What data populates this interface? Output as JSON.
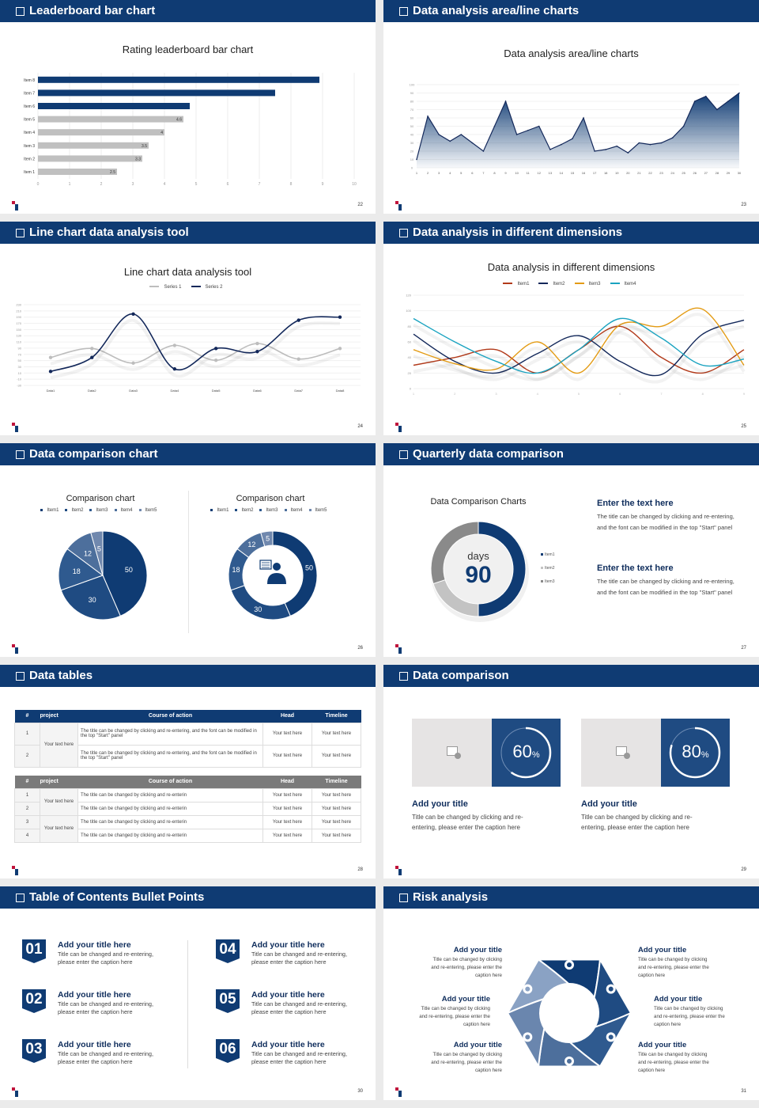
{
  "colors": {
    "navy": "#0f3b73",
    "accent_red": "#c0143c",
    "gray": "#c0c0c0"
  },
  "slides": [
    {
      "header": "Leaderboard bar chart",
      "page": "22"
    },
    {
      "header": "Data analysis area/line charts",
      "page": "23"
    },
    {
      "header": "Line chart data analysis tool",
      "page": "24"
    },
    {
      "header": "Data analysis in different dimensions",
      "page": "25"
    },
    {
      "header": "Data comparison chart",
      "page": "26"
    },
    {
      "header": "Quarterly data comparison",
      "page": "27"
    },
    {
      "header": "Data tables",
      "page": "28"
    },
    {
      "header": "Data comparison",
      "page": "29"
    },
    {
      "header": "Table of Contents Bullet Points",
      "page": "30"
    },
    {
      "header": "Risk analysis",
      "page": "31"
    }
  ],
  "chart_data": [
    {
      "type": "bar",
      "orientation": "horizontal",
      "title": "Rating leaderboard bar chart",
      "categories": [
        "Item 1",
        "Item 2",
        "Item 3",
        "Item 4",
        "Item 5",
        "Item 6",
        "Item 7",
        "Item 8"
      ],
      "values": [
        2.5,
        3.3,
        3.5,
        4,
        4.6,
        4.8,
        7.5,
        8.9
      ],
      "data_labels": [
        "2.5",
        "3.3",
        "3.5",
        "4",
        "4.6",
        "",
        "",
        ""
      ],
      "highlight": [
        false,
        false,
        false,
        false,
        false,
        true,
        true,
        true
      ],
      "xlim": [
        0,
        10
      ],
      "xticks": [
        "0",
        "1",
        "2",
        "3",
        "4",
        "5",
        "6",
        "7",
        "8",
        "9",
        "10"
      ],
      "grid": true
    },
    {
      "type": "area",
      "title": "Data analysis area/line charts",
      "x": [
        "1",
        "2",
        "3",
        "4",
        "5",
        "6",
        "7",
        "8",
        "9",
        "10",
        "11",
        "12",
        "13",
        "14",
        "15",
        "16",
        "17",
        "18",
        "19",
        "20",
        "21",
        "22",
        "23",
        "24",
        "25",
        "26",
        "27",
        "28",
        "29",
        "30"
      ],
      "values": [
        10,
        62,
        40,
        32,
        40,
        30,
        20,
        50,
        80,
        40,
        45,
        50,
        22,
        28,
        35,
        60,
        20,
        22,
        26,
        18,
        30,
        28,
        30,
        36,
        50,
        80,
        86,
        70,
        80,
        90
      ],
      "ylim": [
        0,
        100
      ],
      "yticks": [
        "0",
        "10",
        "20",
        "30",
        "40",
        "50",
        "60",
        "70",
        "80",
        "90",
        "100"
      ],
      "grid": true
    },
    {
      "type": "line",
      "smooth": true,
      "title": "Line chart data analysis tool",
      "categories": [
        "Data1",
        "Data2",
        "Data3",
        "Data4",
        "Data5",
        "Data6",
        "Data7",
        "Data8"
      ],
      "series": [
        {
          "name": "Series 1",
          "values": [
            60,
            89,
            42,
            99,
            51,
            105,
            55,
            89
          ],
          "color": "#bdbdbd"
        },
        {
          "name": "Series 2",
          "values": [
            15,
            60,
            200,
            23,
            89,
            79,
            180,
            190
          ],
          "color": "#13285a"
        }
      ],
      "ylim": [
        -30,
        230
      ],
      "yticks": [
        "-30",
        "-10",
        "10",
        "30",
        "50",
        "70",
        "90",
        "110",
        "130",
        "150",
        "170",
        "190",
        "210",
        "230"
      ],
      "legend": "top"
    },
    {
      "type": "line",
      "smooth": true,
      "title": "Data analysis in different dimensions",
      "x": [
        "1",
        "2",
        "3",
        "4",
        "5",
        "6",
        "7",
        "8",
        "9"
      ],
      "series": [
        {
          "name": "Item1",
          "values": [
            30,
            40,
            50,
            20,
            50,
            80,
            40,
            20,
            50
          ],
          "color": "#b23a1a"
        },
        {
          "name": "Item2",
          "values": [
            70,
            35,
            20,
            45,
            68,
            35,
            18,
            70,
            88
          ],
          "color": "#13285a"
        },
        {
          "name": "Item3",
          "values": [
            50,
            32,
            25,
            60,
            20,
            82,
            80,
            102,
            30
          ],
          "color": "#e39b14"
        },
        {
          "name": "Item4",
          "values": [
            90,
            60,
            35,
            20,
            50,
            90,
            65,
            30,
            38
          ],
          "color": "#1aa3c0"
        }
      ],
      "ylim": [
        0,
        120
      ],
      "yticks": [
        "0",
        "20",
        "40",
        "60",
        "80",
        "100",
        "120"
      ],
      "legend": "top"
    },
    {
      "type": "pie",
      "title": "Comparison chart",
      "categories": [
        "Item1",
        "Item2",
        "Item3",
        "Item4",
        "Item5"
      ],
      "values": [
        50,
        30,
        18,
        12,
        5
      ],
      "colors": [
        "#0f3b73",
        "#1f4b82",
        "#2f5a8f",
        "#4d6f9c",
        "#7088ae"
      ],
      "legend": "top"
    },
    {
      "type": "pie",
      "donut": true,
      "title": "Comparison chart",
      "categories": [
        "Item1",
        "Item2",
        "Item3",
        "Item4",
        "Item5"
      ],
      "values": [
        50,
        30,
        18,
        12,
        5
      ],
      "colors": [
        "#0f3b73",
        "#1f4b82",
        "#2f5a8f",
        "#4d6f9c",
        "#7088ae"
      ],
      "legend": "top",
      "center_icon": "customer-service-icon"
    },
    {
      "type": "pie",
      "donut": true,
      "title": "Data Comparison Charts",
      "categories": [
        "Item1",
        "Item2",
        "Item3"
      ],
      "values": [
        50,
        20,
        30
      ],
      "colors": [
        "#0f3b73",
        "#c3c3c3",
        "#8a8a8a"
      ],
      "legend": "right",
      "center_label": "days",
      "center_value": "90"
    }
  ],
  "quarterly": {
    "blocks": [
      {
        "title": "Enter the text here",
        "text": "The title can be changed by clicking and re-entering, and the font can be modified in the top \"Start\" panel"
      },
      {
        "title": "Enter the text here",
        "text": "The title can be changed by clicking and re-entering, and the font can be modified in the top \"Start\" panel"
      }
    ]
  },
  "tables": {
    "headers": [
      "#",
      "project",
      "Course of action",
      "Head",
      "Timeline"
    ],
    "t1": {
      "project": "Your text here",
      "rows": [
        {
          "n": "1",
          "action": "The title can be changed by clicking and re-entering, and the font can be modified in the top \"Start\" panel",
          "head": "Your text here",
          "time": "Your text here"
        },
        {
          "n": "2",
          "action": "The title can be changed by clicking and re-entering, and the font can be modified in the top \"Start\" panel",
          "head": "Your text here",
          "time": "Your text here"
        }
      ]
    },
    "t2": {
      "projects": [
        "Your text here",
        "Your text here"
      ],
      "rows": [
        {
          "n": "1",
          "action": "The title can be changed by clicking and re-enterin",
          "head": "Your text here",
          "time": "Your text here"
        },
        {
          "n": "2",
          "action": "The title can be changed by clicking and re-enterin",
          "head": "Your text here",
          "time": "Your text here"
        },
        {
          "n": "3",
          "action": "The title can be changed by clicking and re-enterin",
          "head": "Your text here",
          "time": "Your text here"
        },
        {
          "n": "4",
          "action": "The title can be changed by clicking and re-enterin",
          "head": "Your text here",
          "time": "Your text here"
        }
      ]
    }
  },
  "comparison": {
    "cards": [
      {
        "percent": 60,
        "value": "60",
        "unit": "%",
        "title": "Add your title",
        "text": "Title can be changed by clicking and re-entering, please enter the caption here"
      },
      {
        "percent": 80,
        "value": "80",
        "unit": "%",
        "title": "Add your title",
        "text": "Title can be changed by clicking and re-entering, please enter the caption here"
      }
    ]
  },
  "toc": {
    "items": [
      {
        "num": "01",
        "title": "Add your title here",
        "text": "Title can be changed and re-entering, please enter the caption here"
      },
      {
        "num": "02",
        "title": "Add your title here",
        "text": "Title can be changed and re-entering, please enter the caption here"
      },
      {
        "num": "03",
        "title": "Add your title here",
        "text": "Title can be changed and re-entering, please enter the caption here"
      },
      {
        "num": "04",
        "title": "Add your title here",
        "text": "Title can be changed and re-entering, please enter the caption here"
      },
      {
        "num": "05",
        "title": "Add your title here",
        "text": "Title can be changed and re-entering, please enter the caption here"
      },
      {
        "num": "06",
        "title": "Add your title here",
        "text": "Title can be changed and re-entering, please enter the caption here"
      }
    ]
  },
  "risk": {
    "items": [
      {
        "title": "Add your title",
        "text": "Title can be changed by clicking and re-entering, please enter the caption here",
        "icon": "money-bag-yen-icon"
      },
      {
        "title": "Add your title",
        "text": "Title can be changed by clicking and re-entering, please enter the caption here",
        "icon": "coins-dollar-icon"
      },
      {
        "title": "Add your title",
        "text": "Title can be changed by clicking and re-entering, please enter the caption here",
        "icon": "hand-yen-icon"
      },
      {
        "title": "Add your title",
        "text": "Title can be changed by clicking and re-entering, please enter the caption here",
        "icon": "users-icon"
      },
      {
        "title": "Add your title",
        "text": "Title can be changed by clicking and re-entering, please enter the caption here",
        "icon": "buildings-icon"
      },
      {
        "title": "Add your title",
        "text": "Title can be changed by clicking and re-entering, please enter the caption here",
        "icon": "pie-chart-icon"
      }
    ]
  }
}
